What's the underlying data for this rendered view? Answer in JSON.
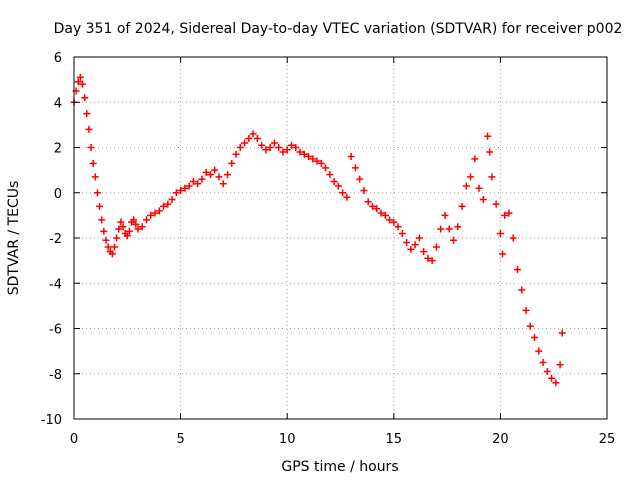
{
  "chart_data": {
    "type": "scatter",
    "title": "Day 351 of 2024, Sidereal Day-to-day VTEC variation (SDTVAR) for receiver p002",
    "xlabel": "GPS time / hours",
    "ylabel": "SDTVAR / TECUs",
    "xlim": [
      0,
      25
    ],
    "ylim": [
      -10,
      6
    ],
    "xticks": [
      0,
      5,
      10,
      15,
      20,
      25
    ],
    "yticks": [
      -10,
      -8,
      -6,
      -4,
      -2,
      0,
      2,
      4,
      6
    ],
    "xtick_labels": [
      "0",
      "5",
      "10",
      "15",
      "20",
      "25"
    ],
    "ytick_labels": [
      "-10",
      "-8",
      "-6",
      "-4",
      "-2",
      "0",
      "2",
      "4",
      "6"
    ],
    "grid": true,
    "marker": "+",
    "color": "#ff0000",
    "series": [
      {
        "name": "SDTVAR",
        "points": [
          [
            0.0,
            4.0
          ],
          [
            0.1,
            4.5
          ],
          [
            0.2,
            4.9
          ],
          [
            0.3,
            5.1
          ],
          [
            0.4,
            4.8
          ],
          [
            0.5,
            4.2
          ],
          [
            0.6,
            3.5
          ],
          [
            0.7,
            2.8
          ],
          [
            0.8,
            2.0
          ],
          [
            0.9,
            1.3
          ],
          [
            1.0,
            0.7
          ],
          [
            1.1,
            0.0
          ],
          [
            1.2,
            -0.6
          ],
          [
            1.3,
            -1.2
          ],
          [
            1.4,
            -1.7
          ],
          [
            1.5,
            -2.1
          ],
          [
            1.6,
            -2.4
          ],
          [
            1.7,
            -2.6
          ],
          [
            1.8,
            -2.7
          ],
          [
            1.9,
            -2.4
          ],
          [
            2.0,
            -2.0
          ],
          [
            2.1,
            -1.6
          ],
          [
            2.2,
            -1.3
          ],
          [
            2.3,
            -1.5
          ],
          [
            2.4,
            -1.8
          ],
          [
            2.5,
            -1.9
          ],
          [
            2.6,
            -1.7
          ],
          [
            2.7,
            -1.3
          ],
          [
            2.8,
            -1.2
          ],
          [
            2.9,
            -1.4
          ],
          [
            3.0,
            -1.6
          ],
          [
            3.2,
            -1.5
          ],
          [
            3.4,
            -1.2
          ],
          [
            3.6,
            -1.0
          ],
          [
            3.8,
            -0.9
          ],
          [
            4.0,
            -0.8
          ],
          [
            4.2,
            -0.6
          ],
          [
            4.4,
            -0.5
          ],
          [
            4.6,
            -0.3
          ],
          [
            4.8,
            0.0
          ],
          [
            5.0,
            0.1
          ],
          [
            5.2,
            0.2
          ],
          [
            5.4,
            0.3
          ],
          [
            5.6,
            0.5
          ],
          [
            5.8,
            0.4
          ],
          [
            6.0,
            0.6
          ],
          [
            6.2,
            0.9
          ],
          [
            6.4,
            0.8
          ],
          [
            6.6,
            1.0
          ],
          [
            6.8,
            0.7
          ],
          [
            7.0,
            0.4
          ],
          [
            7.2,
            0.8
          ],
          [
            7.4,
            1.3
          ],
          [
            7.6,
            1.7
          ],
          [
            7.8,
            2.0
          ],
          [
            8.0,
            2.2
          ],
          [
            8.2,
            2.4
          ],
          [
            8.4,
            2.6
          ],
          [
            8.6,
            2.4
          ],
          [
            8.8,
            2.1
          ],
          [
            9.0,
            1.9
          ],
          [
            9.2,
            2.0
          ],
          [
            9.4,
            2.2
          ],
          [
            9.6,
            2.0
          ],
          [
            9.8,
            1.8
          ],
          [
            10.0,
            1.9
          ],
          [
            10.2,
            2.1
          ],
          [
            10.4,
            2.0
          ],
          [
            10.6,
            1.8
          ],
          [
            10.8,
            1.7
          ],
          [
            11.0,
            1.6
          ],
          [
            11.2,
            1.5
          ],
          [
            11.4,
            1.4
          ],
          [
            11.6,
            1.3
          ],
          [
            11.8,
            1.1
          ],
          [
            12.0,
            0.8
          ],
          [
            12.2,
            0.5
          ],
          [
            12.4,
            0.3
          ],
          [
            12.6,
            0.0
          ],
          [
            12.8,
            -0.2
          ],
          [
            13.0,
            1.6
          ],
          [
            13.2,
            1.1
          ],
          [
            13.4,
            0.6
          ],
          [
            13.6,
            0.1
          ],
          [
            13.8,
            -0.4
          ],
          [
            14.0,
            -0.6
          ],
          [
            14.2,
            -0.7
          ],
          [
            14.4,
            -0.9
          ],
          [
            14.6,
            -1.0
          ],
          [
            14.8,
            -1.2
          ],
          [
            15.0,
            -1.3
          ],
          [
            15.2,
            -1.5
          ],
          [
            15.4,
            -1.8
          ],
          [
            15.6,
            -2.2
          ],
          [
            15.8,
            -2.5
          ],
          [
            16.0,
            -2.3
          ],
          [
            16.2,
            -2.0
          ],
          [
            16.4,
            -2.6
          ],
          [
            16.6,
            -2.9
          ],
          [
            16.8,
            -3.0
          ],
          [
            17.0,
            -2.4
          ],
          [
            17.2,
            -1.6
          ],
          [
            17.4,
            -1.0
          ],
          [
            17.6,
            -1.6
          ],
          [
            17.8,
            -2.1
          ],
          [
            18.0,
            -1.5
          ],
          [
            18.2,
            -0.6
          ],
          [
            18.4,
            0.3
          ],
          [
            18.6,
            0.7
          ],
          [
            18.8,
            1.5
          ],
          [
            19.0,
            0.2
          ],
          [
            19.2,
            -0.3
          ],
          [
            19.4,
            2.5
          ],
          [
            19.5,
            1.8
          ],
          [
            19.6,
            0.7
          ],
          [
            19.8,
            -0.5
          ],
          [
            20.0,
            -1.8
          ],
          [
            20.1,
            -2.7
          ],
          [
            20.2,
            -1.0
          ],
          [
            20.4,
            -0.9
          ],
          [
            20.6,
            -2.0
          ],
          [
            20.8,
            -3.4
          ],
          [
            21.0,
            -4.3
          ],
          [
            21.2,
            -5.2
          ],
          [
            21.4,
            -5.9
          ],
          [
            21.6,
            -6.4
          ],
          [
            21.8,
            -7.0
          ],
          [
            22.0,
            -7.5
          ],
          [
            22.2,
            -7.9
          ],
          [
            22.4,
            -8.2
          ],
          [
            22.6,
            -8.4
          ],
          [
            22.8,
            -7.6
          ],
          [
            22.9,
            -6.2
          ]
        ]
      }
    ]
  }
}
